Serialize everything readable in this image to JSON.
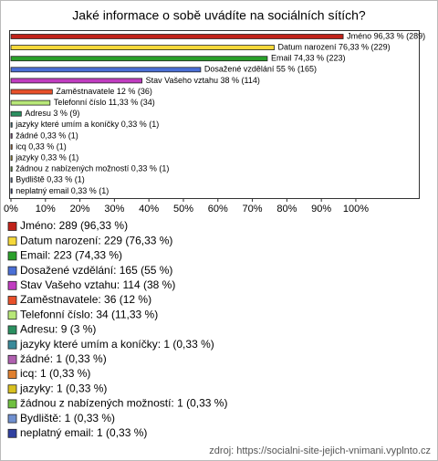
{
  "chart_data": {
    "type": "bar",
    "orientation": "horizontal",
    "title": "Jaké informace o sobě uvádíte na sociálních sítích?",
    "categories": [
      "Jméno",
      "Datum narození",
      "Email",
      "Dosažené vzdělání",
      "Stav Vašeho vztahu",
      "Zaměstnavatele",
      "Telefonní číslo",
      "Adresu",
      "jazyky které umím a koníčky",
      "žádné",
      "icq",
      "jazyky",
      "žádnou z nabízených možností",
      "Bydliště",
      "neplatný email"
    ],
    "values": [
      96.33,
      76.33,
      74.33,
      55,
      38,
      12,
      11.33,
      3,
      0.33,
      0.33,
      0.33,
      0.33,
      0.33,
      0.33,
      0.33
    ],
    "value_labels": [
      "Jméno 96,33 % (289)",
      "Datum narození 76,33 % (229)",
      "Email 74,33 % (223)",
      "Dosažené vzdělání 55 % (165)",
      "Stav Vašeho vztahu 38 % (114)",
      "Zaměstnavatele 12 % (36)",
      "Telefonní číslo 11,33 % (34)",
      "Adresu 3 % (9)",
      "jazyky které umím a koníčky 0,33 % (1)",
      "žádné 0,33 % (1)",
      "icq 0,33 % (1)",
      "jazyky 0,33 % (1)",
      "žádnou z nabízených možností 0,33 % (1)",
      "Bydliště 0,33 % (1)",
      "neplatný email 0,33 % (1)"
    ],
    "legend_labels": [
      "Jméno: 289 (96,33 %)",
      "Datum narození: 229 (76,33 %)",
      "Email: 223 (74,33 %)",
      "Dosažené vzdělání: 165 (55 %)",
      "Stav Vašeho vztahu: 114 (38 %)",
      "Zaměstnavatele: 36 (12 %)",
      "Telefonní číslo: 34 (11,33 %)",
      "Adresu: 9 (3 %)",
      "jazyky které umím a koníčky: 1 (0,33 %)",
      "žádné: 1 (0,33 %)",
      "icq: 1 (0,33 %)",
      "jazyky: 1 (0,33 %)",
      "žádnou z nabízených možností: 1 (0,33 %)",
      "Bydliště: 1 (0,33 %)",
      "neplatný email: 1 (0,33 %)"
    ],
    "colors": [
      "#c0221a",
      "#f5d83a",
      "#2aa02a",
      "#4a6fd6",
      "#c03cc0",
      "#e8502a",
      "#b8e878",
      "#2a9060",
      "#3a8a9a",
      "#b060b0",
      "#e08030",
      "#d8c020",
      "#70c040",
      "#7090d0",
      "#3040a0"
    ],
    "xlim": [
      0,
      118
    ],
    "xticks": [
      {
        "value": 0,
        "label": "0%"
      },
      {
        "value": 10,
        "label": "10%"
      },
      {
        "value": 20,
        "label": "20%"
      },
      {
        "value": 30,
        "label": "30%"
      },
      {
        "value": 40,
        "label": "40%"
      },
      {
        "value": 50,
        "label": "50%"
      },
      {
        "value": 60,
        "label": "60%"
      },
      {
        "value": 70,
        "label": "70%"
      },
      {
        "value": 80,
        "label": "80%"
      },
      {
        "value": 90,
        "label": "90%"
      },
      {
        "value": 100,
        "label": "100%"
      }
    ],
    "source": "zdroj: https://socialni-site-jejich-vnimani.vyplnto.cz"
  }
}
